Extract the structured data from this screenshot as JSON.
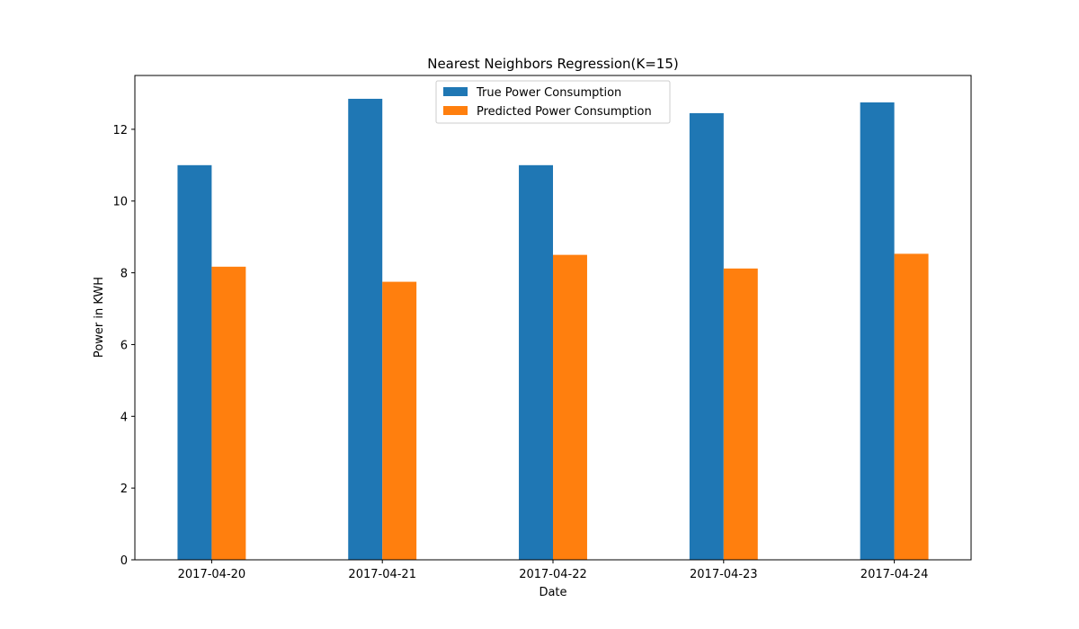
{
  "chart_data": {
    "type": "bar",
    "title": "Nearest Neighbors Regression(K=15)",
    "xlabel": "Date",
    "ylabel": "Power in KWH",
    "categories": [
      "2017-04-20",
      "2017-04-21",
      "2017-04-22",
      "2017-04-23",
      "2017-04-24"
    ],
    "series": [
      {
        "name": "True Power Consumption",
        "color": "#1f77b4",
        "values": [
          11.0,
          12.85,
          11.0,
          12.45,
          12.75
        ]
      },
      {
        "name": "Predicted Power Consumption",
        "color": "#ff7f0e",
        "values": [
          8.17,
          7.75,
          8.5,
          8.12,
          8.53
        ]
      }
    ],
    "ylim": [
      0,
      13.5
    ],
    "yticks": [
      0,
      2,
      4,
      6,
      8,
      10,
      12
    ],
    "legend": "upper-center",
    "grid": false
  }
}
